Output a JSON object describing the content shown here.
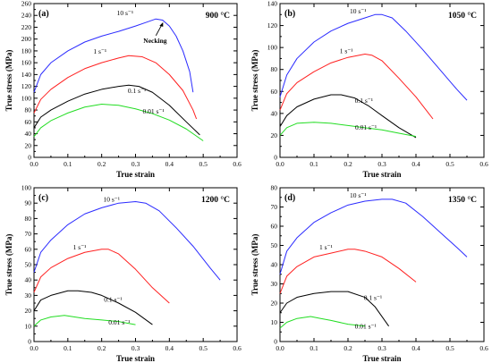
{
  "chart_data": [
    {
      "type": "line",
      "panel_label": "(a)",
      "temperature": "900 °C",
      "xlabel": "True strain",
      "ylabel": "True stress (MPa)",
      "xlim": [
        0,
        0.6
      ],
      "ylim": [
        0,
        260
      ],
      "xticks": [
        "0.0",
        "0.1",
        "0.2",
        "0.3",
        "0.4",
        "0.5",
        "0.6"
      ],
      "yticks": [
        "0",
        "20",
        "40",
        "60",
        "80",
        "100",
        "120",
        "140",
        "160",
        "180",
        "200",
        "220",
        "240",
        "260"
      ],
      "annotation": {
        "text": "Necking",
        "x": 0.355,
        "y": 230
      },
      "series": [
        {
          "name": "10 s⁻¹",
          "color": "#2b2bff",
          "x": [
            0.0,
            0.02,
            0.05,
            0.1,
            0.15,
            0.2,
            0.25,
            0.3,
            0.33,
            0.36,
            0.38,
            0.4,
            0.42,
            0.44,
            0.46,
            0.47
          ],
          "y": [
            110,
            140,
            160,
            180,
            195,
            205,
            213,
            222,
            228,
            234,
            232,
            222,
            205,
            180,
            145,
            110
          ]
        },
        {
          "name": "1 s⁻¹",
          "color": "#ff2020",
          "x": [
            0.0,
            0.02,
            0.05,
            0.1,
            0.15,
            0.2,
            0.25,
            0.28,
            0.32,
            0.36,
            0.4,
            0.44,
            0.47,
            0.48
          ],
          "y": [
            75,
            98,
            115,
            135,
            150,
            160,
            168,
            172,
            170,
            160,
            140,
            113,
            80,
            65
          ]
        },
        {
          "name": "0.1 s⁻¹",
          "color": "#000000",
          "x": [
            0.0,
            0.02,
            0.05,
            0.1,
            0.15,
            0.2,
            0.25,
            0.28,
            0.31,
            0.35,
            0.4,
            0.45,
            0.49
          ],
          "y": [
            50,
            68,
            80,
            95,
            107,
            115,
            120,
            122,
            120,
            110,
            88,
            60,
            38
          ]
        },
        {
          "name": "0.01 s⁻¹",
          "color": "#22dd22",
          "x": [
            0.0,
            0.02,
            0.05,
            0.1,
            0.15,
            0.2,
            0.25,
            0.3,
            0.35,
            0.4,
            0.45,
            0.5
          ],
          "y": [
            35,
            50,
            62,
            75,
            85,
            90,
            88,
            82,
            74,
            63,
            48,
            28
          ]
        }
      ]
    },
    {
      "type": "line",
      "panel_label": "(b)",
      "temperature": "1050 °C",
      "xlabel": "True strain",
      "ylabel": "True stress (MPa)",
      "xlim": [
        0,
        0.6
      ],
      "ylim": [
        0,
        140
      ],
      "xticks": [
        "0.0",
        "0.1",
        "0.2",
        "0.3",
        "0.4",
        "0.5",
        "0.6"
      ],
      "yticks": [
        "0",
        "20",
        "40",
        "60",
        "80",
        "100",
        "120",
        "140"
      ],
      "series": [
        {
          "name": "10 s⁻¹",
          "color": "#2b2bff",
          "x": [
            0.0,
            0.02,
            0.05,
            0.1,
            0.15,
            0.2,
            0.25,
            0.28,
            0.3,
            0.33,
            0.37,
            0.42,
            0.47,
            0.52,
            0.55
          ],
          "y": [
            55,
            75,
            90,
            105,
            115,
            122,
            127,
            130,
            130,
            127,
            115,
            98,
            80,
            62,
            52
          ]
        },
        {
          "name": "1 s⁻¹",
          "color": "#ff2020",
          "x": [
            0.0,
            0.02,
            0.05,
            0.1,
            0.15,
            0.2,
            0.25,
            0.27,
            0.3,
            0.35,
            0.4,
            0.45
          ],
          "y": [
            43,
            58,
            68,
            78,
            86,
            91,
            94,
            93,
            88,
            72,
            55,
            35
          ]
        },
        {
          "name": "0.1 s⁻¹",
          "color": "#000000",
          "x": [
            0.0,
            0.02,
            0.05,
            0.1,
            0.15,
            0.18,
            0.22,
            0.26,
            0.3,
            0.35,
            0.4
          ],
          "y": [
            28,
            38,
            46,
            53,
            57,
            57,
            54,
            47,
            38,
            27,
            18
          ]
        },
        {
          "name": "0.01 s⁻¹",
          "color": "#22dd22",
          "x": [
            0.0,
            0.02,
            0.05,
            0.1,
            0.15,
            0.2,
            0.25,
            0.3,
            0.35,
            0.4
          ],
          "y": [
            20,
            27,
            31,
            32,
            31,
            29,
            27,
            25,
            22,
            19
          ]
        }
      ]
    },
    {
      "type": "line",
      "panel_label": "(c)",
      "temperature": "1200 °C",
      "xlabel": "True strain",
      "ylabel": "True stress (MPa)",
      "xlim": [
        0,
        0.6
      ],
      "ylim": [
        0,
        100
      ],
      "xticks": [
        "0.0",
        "0.1",
        "0.2",
        "0.3",
        "0.4",
        "0.5",
        "0.6"
      ],
      "yticks": [
        "0",
        "10",
        "20",
        "30",
        "40",
        "50",
        "60",
        "70",
        "80",
        "90",
        "100"
      ],
      "series": [
        {
          "name": "10 s⁻¹",
          "color": "#2b2bff",
          "x": [
            0.0,
            0.02,
            0.05,
            0.1,
            0.15,
            0.2,
            0.25,
            0.3,
            0.33,
            0.37,
            0.42,
            0.47,
            0.52,
            0.55
          ],
          "y": [
            45,
            58,
            66,
            76,
            83,
            87,
            90,
            91,
            90,
            85,
            74,
            62,
            48,
            40
          ]
        },
        {
          "name": "1 s⁻¹",
          "color": "#ff2020",
          "x": [
            0.0,
            0.02,
            0.05,
            0.1,
            0.15,
            0.2,
            0.22,
            0.25,
            0.3,
            0.35,
            0.4
          ],
          "y": [
            32,
            42,
            48,
            54,
            58,
            60,
            60,
            57,
            47,
            35,
            25
          ]
        },
        {
          "name": "0.1 s⁻¹",
          "color": "#000000",
          "x": [
            0.0,
            0.02,
            0.05,
            0.1,
            0.13,
            0.17,
            0.2,
            0.25,
            0.3,
            0.35
          ],
          "y": [
            20,
            27,
            30,
            33,
            33,
            32,
            30,
            25,
            19,
            11
          ]
        },
        {
          "name": "0.01 s⁻¹",
          "color": "#22dd22",
          "x": [
            0.0,
            0.02,
            0.05,
            0.09,
            0.12,
            0.15,
            0.2,
            0.25,
            0.3
          ],
          "y": [
            10,
            14,
            16,
            17,
            16,
            15,
            14,
            13,
            11
          ]
        }
      ]
    },
    {
      "type": "line",
      "panel_label": "(d)",
      "temperature": "1350 °C",
      "xlabel": "True strain",
      "ylabel": "True stress (MPa)",
      "xlim": [
        0,
        0.6
      ],
      "ylim": [
        0,
        80
      ],
      "xticks": [
        "0.0",
        "0.1",
        "0.2",
        "0.3",
        "0.4",
        "0.5",
        "0.6"
      ],
      "yticks": [
        "0",
        "10",
        "20",
        "30",
        "40",
        "50",
        "60",
        "70",
        "80"
      ],
      "series": [
        {
          "name": "10 s⁻¹",
          "color": "#2b2bff",
          "x": [
            0.0,
            0.02,
            0.05,
            0.1,
            0.15,
            0.2,
            0.25,
            0.3,
            0.33,
            0.37,
            0.42,
            0.47,
            0.52,
            0.55
          ],
          "y": [
            35,
            47,
            54,
            62,
            67,
            71,
            73,
            74,
            74,
            72,
            65,
            57,
            49,
            44
          ]
        },
        {
          "name": "1 s⁻¹",
          "color": "#ff2020",
          "x": [
            0.0,
            0.02,
            0.05,
            0.1,
            0.15,
            0.2,
            0.22,
            0.25,
            0.3,
            0.35,
            0.4
          ],
          "y": [
            25,
            34,
            39,
            44,
            46,
            48,
            48,
            47,
            44,
            38,
            31
          ]
        },
        {
          "name": "0.1 s⁻¹",
          "color": "#000000",
          "x": [
            0.0,
            0.02,
            0.05,
            0.1,
            0.15,
            0.2,
            0.25,
            0.28,
            0.32
          ],
          "y": [
            15,
            20,
            23,
            25,
            26,
            26,
            23,
            18,
            8
          ]
        },
        {
          "name": "0.01 s⁻¹",
          "color": "#22dd22",
          "x": [
            0.0,
            0.02,
            0.05,
            0.09,
            0.12,
            0.15,
            0.2,
            0.25
          ],
          "y": [
            7,
            10,
            12,
            13,
            12,
            11,
            9,
            8
          ]
        }
      ]
    }
  ]
}
